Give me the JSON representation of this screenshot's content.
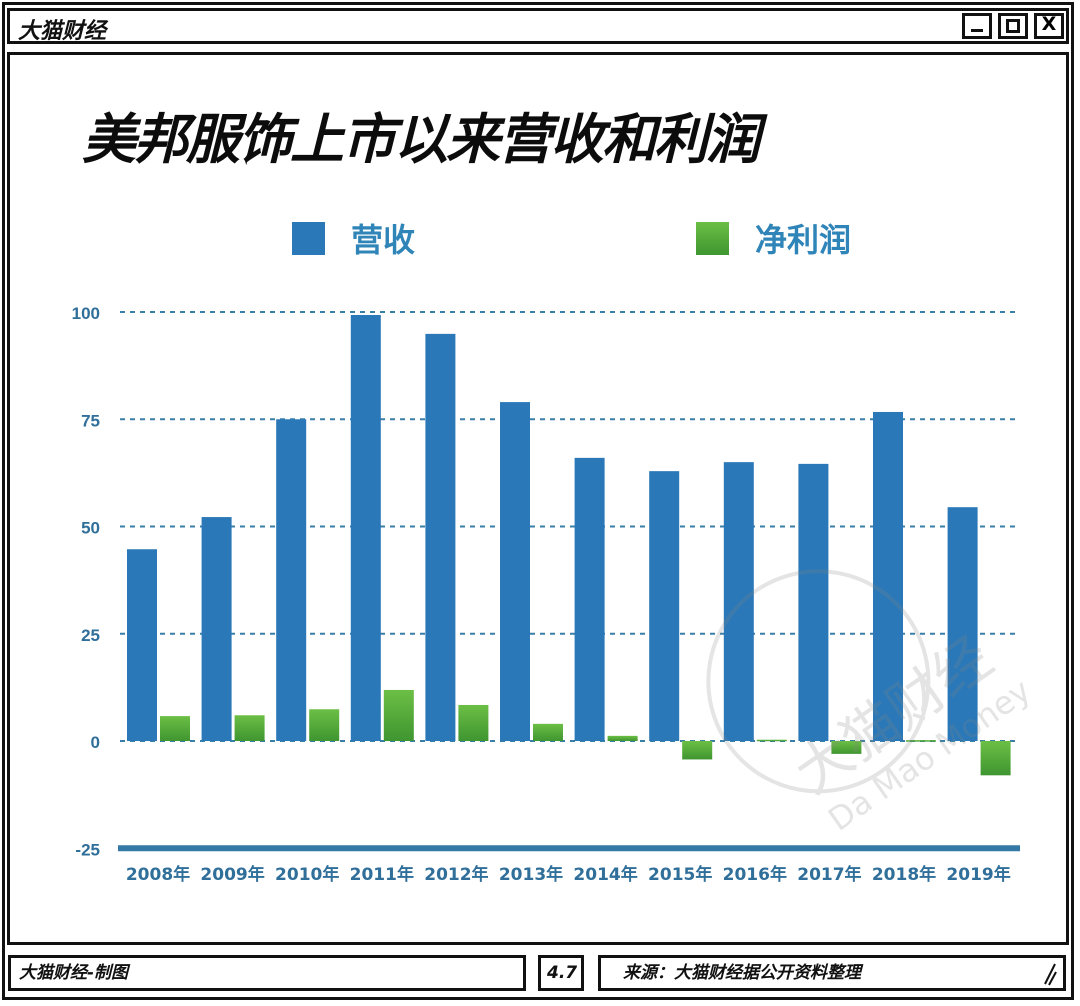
{
  "window": {
    "app_title": "大猫财经",
    "buttons": {
      "minimize": "_",
      "maximize": "□",
      "close": "X"
    }
  },
  "header": {
    "title": "美邦服饰上市以来营收和利润"
  },
  "legend": [
    {
      "label": "营收",
      "color": "#2a78b8"
    },
    {
      "label": "净利润",
      "color": "#4fa83a"
    }
  ],
  "watermark": {
    "cn": "大猫财经",
    "en": "Da Mao Money"
  },
  "footer": {
    "credit": "大猫财经-制图",
    "version": "4.7",
    "source": "来源：大猫财经据公开资料整理"
  },
  "chart_data": {
    "type": "bar",
    "title": "美邦服饰上市以来营收和利润",
    "xlabel": "",
    "ylabel": "",
    "ylim": [
      -25,
      100
    ],
    "yticks": [
      100,
      75,
      50,
      25,
      0,
      -25
    ],
    "grid": true,
    "legend_position": "top",
    "categories": [
      "2008年",
      "2009年",
      "2010年",
      "2011年",
      "2012年",
      "2013年",
      "2014年",
      "2015年",
      "2016年",
      "2017年",
      "2018年",
      "2019年"
    ],
    "series": [
      {
        "name": "营收",
        "color": "#2a78b8",
        "values": [
          44.7,
          52.2,
          75.0,
          99.3,
          94.9,
          79.0,
          66.0,
          62.9,
          65.0,
          64.6,
          76.7,
          54.5
        ]
      },
      {
        "name": "净利润",
        "color": "#4fa83a",
        "values": [
          5.8,
          6.0,
          7.4,
          11.9,
          8.4,
          4.0,
          1.2,
          -4.3,
          0.3,
          -3.0,
          0.2,
          -8.0
        ]
      }
    ]
  }
}
